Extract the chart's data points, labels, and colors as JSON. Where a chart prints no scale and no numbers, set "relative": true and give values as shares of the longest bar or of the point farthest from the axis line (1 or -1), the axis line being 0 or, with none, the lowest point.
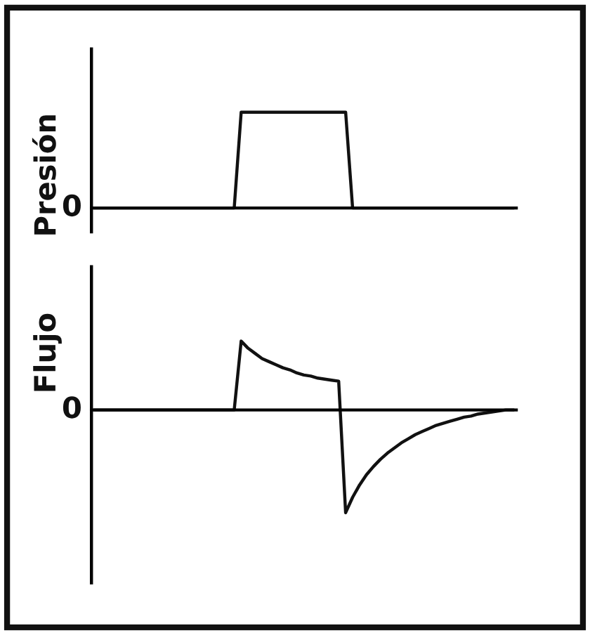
{
  "chart_data": [
    {
      "type": "line",
      "relative": true,
      "ylabel": "Presión",
      "color": "#111111",
      "categories": [
        null,
        null,
        null,
        null,
        null,
        null,
        null,
        null,
        null,
        null,
        null,
        null,
        null,
        null,
        null,
        null,
        null,
        null,
        null,
        null,
        null,
        null,
        null,
        null,
        null,
        null,
        null,
        null,
        null,
        null,
        null,
        null,
        null,
        null,
        null,
        null,
        null,
        null,
        null,
        null,
        null,
        null,
        null,
        null,
        null,
        null,
        null,
        null,
        null,
        null,
        null,
        null,
        null,
        null,
        null,
        null,
        null,
        null,
        null,
        null,
        null
      ],
      "values": [
        0,
        0,
        0,
        0,
        0,
        0,
        0,
        0,
        0,
        0,
        0,
        0,
        0,
        0,
        0,
        0,
        0,
        0,
        0,
        0,
        0,
        1,
        1,
        1,
        1,
        1,
        1,
        1,
        1,
        1,
        1,
        1,
        1,
        1,
        1,
        1,
        1,
        0,
        0,
        0,
        0,
        0,
        0,
        0,
        0,
        0,
        0,
        0,
        0,
        0,
        0,
        0,
        0,
        0,
        0,
        0,
        0,
        0,
        0,
        0,
        0
      ],
      "annotations": [
        "0"
      ]
    },
    {
      "type": "line",
      "relative": true,
      "ylabel": "Flujo",
      "color": "#111111",
      "categories": [
        null,
        null,
        null,
        null,
        null,
        null,
        null,
        null,
        null,
        null,
        null,
        null,
        null,
        null,
        null,
        null,
        null,
        null,
        null,
        null,
        null,
        null,
        null,
        null,
        null,
        null,
        null,
        null,
        null,
        null,
        null,
        null,
        null,
        null,
        null,
        null,
        null,
        null,
        null,
        null,
        null,
        null,
        null,
        null,
        null,
        null,
        null,
        null,
        null,
        null,
        null,
        null,
        null,
        null,
        null,
        null,
        null,
        null,
        null,
        null,
        null
      ],
      "values": [
        0,
        0,
        0,
        0,
        0,
        0,
        0,
        0,
        0,
        0,
        0,
        0,
        0,
        0,
        0,
        0,
        0,
        0,
        0,
        0,
        0,
        0.67,
        0.6,
        0.55,
        0.5,
        0.47,
        0.44,
        0.41,
        0.39,
        0.36,
        0.34,
        0.33,
        0.31,
        0.3,
        0.29,
        0.28,
        -1,
        -0.85,
        -0.73,
        -0.63,
        -0.55,
        -0.48,
        -0.42,
        -0.37,
        -0.32,
        -0.28,
        -0.24,
        -0.21,
        -0.18,
        -0.15,
        -0.13,
        -0.11,
        -0.09,
        -0.07,
        -0.06,
        -0.04,
        -0.03,
        -0.02,
        -0.01,
        0,
        0
      ],
      "annotations": [
        "0"
      ]
    }
  ]
}
